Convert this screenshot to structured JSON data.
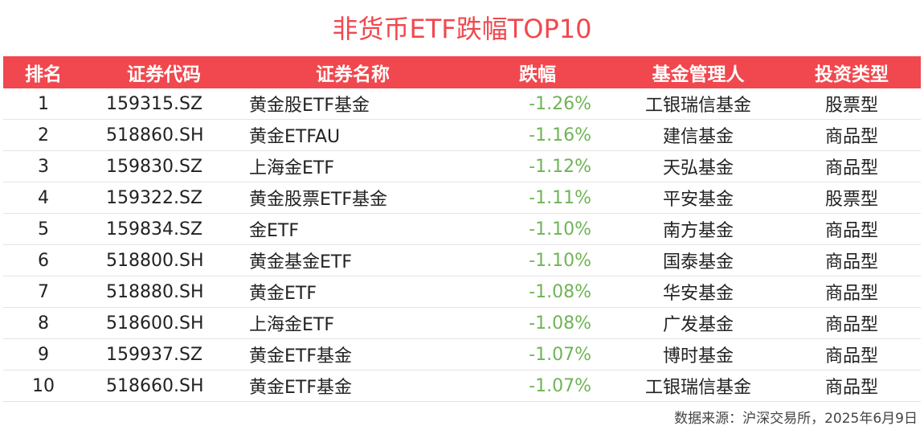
{
  "chart_data": {
    "type": "table",
    "title": "非货币ETF跌幅TOP10",
    "columns": [
      "排名",
      "证券代码",
      "证券名称",
      "跌幅",
      "基金管理人",
      "投资类型"
    ],
    "rows": [
      {
        "rank": "1",
        "code": "159315.SZ",
        "name": "黄金股ETF基金",
        "change": "-1.26%",
        "manager": "工银瑞信基金",
        "type": "股票型"
      },
      {
        "rank": "2",
        "code": "518860.SH",
        "name": "黄金ETFAU",
        "change": "-1.16%",
        "manager": "建信基金",
        "type": "商品型"
      },
      {
        "rank": "3",
        "code": "159830.SZ",
        "name": "上海金ETF",
        "change": "-1.12%",
        "manager": "天弘基金",
        "type": "商品型"
      },
      {
        "rank": "4",
        "code": "159322.SZ",
        "name": "黄金股票ETF基金",
        "change": "-1.11%",
        "manager": "平安基金",
        "type": "股票型"
      },
      {
        "rank": "5",
        "code": "159834.SZ",
        "name": "金ETF",
        "change": "-1.10%",
        "manager": "南方基金",
        "type": "商品型"
      },
      {
        "rank": "6",
        "code": "518800.SH",
        "name": "黄金基金ETF",
        "change": "-1.10%",
        "manager": "国泰基金",
        "type": "商品型"
      },
      {
        "rank": "7",
        "code": "518880.SH",
        "name": "黄金ETF",
        "change": "-1.08%",
        "manager": "华安基金",
        "type": "商品型"
      },
      {
        "rank": "8",
        "code": "518600.SH",
        "name": "上海金ETF",
        "change": "-1.08%",
        "manager": "广发基金",
        "type": "商品型"
      },
      {
        "rank": "9",
        "code": "159937.SZ",
        "name": "黄金ETF基金",
        "change": "-1.07%",
        "manager": "博时基金",
        "type": "商品型"
      },
      {
        "rank": "10",
        "code": "518660.SH",
        "name": "黄金ETF基金",
        "change": "-1.07%",
        "manager": "工银瑞信基金",
        "type": "商品型"
      }
    ],
    "source": "数据来源：沪深交易所，2025年6月9日"
  },
  "colors": {
    "header_bg": "#f0484e",
    "title": "#f0484e",
    "change_text": "#6fb456"
  }
}
